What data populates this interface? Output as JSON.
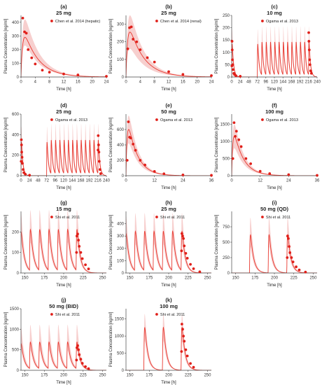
{
  "figure": {
    "y_label": "Plasma Concentration [ng/ml]",
    "x_label": "Time [h]"
  },
  "chart_data": [
    {
      "type": "line",
      "letter": "(a)",
      "title": "25 mg",
      "xlim": [
        0,
        24
      ],
      "ylim": [
        0,
        450
      ],
      "xticks": [
        0,
        4,
        8,
        12,
        16,
        20,
        24
      ],
      "yticks": [
        0,
        100,
        200,
        300,
        400
      ],
      "model": "decay",
      "model_peak": 290,
      "model_tmax": 1.0,
      "band_upper_peak": 420,
      "band_lower_peak": 230,
      "observed": {
        "name": "Chen et al. 2014 (hepatic)",
        "x": [
          0.5,
          1,
          1.5,
          2,
          3,
          4,
          6,
          8,
          12,
          16,
          24
        ],
        "y": [
          430,
          330,
          320,
          200,
          140,
          95,
          50,
          35,
          22,
          15,
          5
        ]
      }
    },
    {
      "type": "line",
      "letter": "(b)",
      "title": "25 mg",
      "xlim": [
        0,
        24
      ],
      "ylim": [
        0,
        350
      ],
      "xticks": [
        0,
        4,
        8,
        12,
        16,
        20,
        24
      ],
      "yticks": [
        0,
        100,
        200,
        300
      ],
      "model": "decay",
      "model_peak": 255,
      "model_tmax": 1.0,
      "band_upper_peak": 350,
      "band_lower_peak": 160,
      "observed": {
        "name": "Chen et al. 2014 (renal)",
        "x": [
          0.5,
          1,
          1.5,
          2,
          3,
          4,
          6,
          8,
          12,
          16,
          24
        ],
        "y": [
          160,
          280,
          285,
          215,
          200,
          155,
          110,
          85,
          30,
          15,
          8
        ]
      }
    },
    {
      "type": "line",
      "letter": "(c)",
      "title": "10 mg",
      "xlim": [
        0,
        240
      ],
      "ylim": [
        0,
        250
      ],
      "xticks": [
        0,
        24,
        48,
        72,
        96,
        120,
        144,
        168,
        192,
        216,
        240
      ],
      "yticks": [
        0,
        50,
        100,
        150,
        200,
        250
      ],
      "model": "multi",
      "dose_times": [
        0,
        72,
        84,
        96,
        108,
        120,
        132,
        144,
        156,
        168,
        180,
        192,
        204,
        216
      ],
      "model_peak": 135,
      "model_tmax": 1.0,
      "band_upper_peak": 195,
      "band_lower_peak": 95,
      "observed": {
        "name": "Ogama et al. 2013",
        "x": [
          0.5,
          1,
          1.5,
          2,
          3,
          4,
          6,
          8,
          12,
          24,
          216.5,
          217,
          218,
          219,
          220,
          222,
          224
        ],
        "y": [
          45,
          145,
          110,
          70,
          50,
          30,
          15,
          10,
          5,
          3,
          180,
          145,
          110,
          70,
          50,
          25,
          15
        ]
      }
    },
    {
      "type": "line",
      "letter": "(d)",
      "title": "25 mg",
      "xlim": [
        0,
        240
      ],
      "ylim": [
        0,
        600
      ],
      "xticks": [
        0,
        24,
        48,
        72,
        96,
        120,
        144,
        168,
        192,
        216,
        240
      ],
      "yticks": [
        0,
        200,
        400,
        600
      ],
      "model": "multi",
      "dose_times": [
        0,
        72,
        84,
        96,
        108,
        120,
        132,
        144,
        156,
        168,
        180,
        192,
        204,
        216
      ],
      "model_peak": 330,
      "model_tmax": 1.0,
      "band_upper_peak": 480,
      "band_lower_peak": 220,
      "observed": {
        "name": "Ogama et al. 2013",
        "x": [
          0.5,
          1,
          1.5,
          2,
          3,
          4,
          6,
          8,
          12,
          24,
          216.5,
          217,
          218,
          219,
          220,
          222,
          224
        ],
        "y": [
          140,
          350,
          300,
          230,
          180,
          120,
          60,
          30,
          15,
          5,
          250,
          390,
          300,
          230,
          140,
          60,
          20
        ]
      }
    },
    {
      "type": "line",
      "letter": "(e)",
      "title": "50 mg",
      "xlim": [
        0,
        36
      ],
      "ylim": [
        0,
        800
      ],
      "xticks": [
        0,
        12,
        24,
        36
      ],
      "yticks": [
        0,
        200,
        400,
        600
      ],
      "model": "decay",
      "model_peak": 600,
      "model_tmax": 1.0,
      "band_upper_peak": 780,
      "band_lower_peak": 420,
      "observed": {
        "name": "Ogama et al. 2013",
        "x": [
          0.5,
          1,
          1.5,
          2,
          3,
          4,
          6,
          8,
          12,
          16,
          24,
          36
        ],
        "y": [
          200,
          700,
          500,
          490,
          410,
          330,
          200,
          140,
          55,
          25,
          10,
          5
        ]
      }
    },
    {
      "type": "line",
      "letter": "(f)",
      "title": "100 mg",
      "xlim": [
        0,
        36
      ],
      "ylim": [
        0,
        1800
      ],
      "xticks": [
        0,
        12,
        24,
        36
      ],
      "yticks": [
        0,
        500,
        1000,
        1500
      ],
      "model": "decay",
      "model_peak": 1150,
      "model_tmax": 1.0,
      "band_upper_peak": 1500,
      "band_lower_peak": 800,
      "observed": {
        "name": "Ogama et al. 2013",
        "x": [
          0.5,
          1,
          1.5,
          2,
          3,
          4,
          6,
          8,
          12,
          16,
          24,
          36
        ],
        "y": [
          500,
          1550,
          1150,
          1300,
          1050,
          850,
          500,
          350,
          130,
          60,
          30,
          10
        ]
      }
    },
    {
      "type": "line",
      "letter": "(g)",
      "title": "15 mg",
      "xlim": [
        145,
        255
      ],
      "ylim": [
        0,
        300
      ],
      "xticks": [
        150,
        175,
        200,
        225,
        250
      ],
      "yticks": [
        0,
        100,
        200
      ],
      "model": "multi",
      "dose_times": [
        144,
        156,
        168,
        180,
        192,
        204,
        216
      ],
      "model_peak": 200,
      "model_tmax": 1.0,
      "band_upper_peak": 290,
      "band_lower_peak": 140,
      "observed": {
        "name": "Shi et al. 2011",
        "x": [
          216.5,
          217,
          218,
          219,
          220,
          222,
          224,
          228,
          232
        ],
        "y": [
          100,
          180,
          190,
          160,
          130,
          100,
          70,
          40,
          20
        ]
      }
    },
    {
      "type": "line",
      "letter": "(h)",
      "title": "25 mg",
      "xlim": [
        145,
        255
      ],
      "ylim": [
        0,
        500
      ],
      "xticks": [
        150,
        175,
        200,
        225,
        250
      ],
      "yticks": [
        0,
        100,
        200,
        300,
        400
      ],
      "model": "multi",
      "dose_times": [
        144,
        156,
        168,
        180,
        192,
        204,
        216
      ],
      "model_peak": 320,
      "model_tmax": 1.0,
      "band_upper_peak": 460,
      "band_lower_peak": 220,
      "observed": {
        "name": "Shi et al. 2011",
        "x": [
          216.5,
          217,
          218,
          219,
          220,
          222,
          224,
          228,
          232,
          240
        ],
        "y": [
          180,
          320,
          300,
          280,
          220,
          160,
          120,
          70,
          35,
          10
        ]
      }
    },
    {
      "type": "line",
      "letter": "(i)",
      "title": "50 mg (QD)",
      "xlim": [
        145,
        255
      ],
      "ylim": [
        0,
        1000
      ],
      "xticks": [
        150,
        175,
        200,
        225,
        250
      ],
      "yticks": [
        0,
        250,
        500,
        750
      ],
      "model": "multi",
      "dose_times": [
        168,
        192,
        216
      ],
      "model_peak": 620,
      "model_tmax": 1.0,
      "band_upper_peak": 900,
      "band_lower_peak": 420,
      "observed": {
        "name": "Shi et al. 2011",
        "x": [
          216.5,
          217,
          218,
          219,
          220,
          222,
          224,
          228,
          232,
          240
        ],
        "y": [
          250,
          600,
          560,
          430,
          330,
          250,
          180,
          100,
          50,
          15
        ]
      }
    },
    {
      "type": "line",
      "letter": "(j)",
      "title": "50 mg (BID)",
      "xlim": [
        145,
        255
      ],
      "ylim": [
        0,
        1500
      ],
      "xticks": [
        150,
        175,
        200,
        225,
        250
      ],
      "yticks": [
        0,
        500,
        1000,
        1500
      ],
      "model": "multi",
      "dose_times": [
        144,
        156,
        168,
        180,
        192,
        204,
        216
      ],
      "model_peak": 650,
      "model_tmax": 1.0,
      "band_upper_peak": 1050,
      "band_lower_peak": 450,
      "observed": {
        "name": "Shi et al. 2011",
        "x": [
          216.5,
          217,
          218,
          219,
          220,
          222,
          224,
          228,
          232
        ],
        "y": [
          250,
          550,
          600,
          500,
          380,
          270,
          170,
          90,
          40
        ]
      }
    },
    {
      "type": "line",
      "letter": "(k)",
      "title": "100 mg",
      "xlim": [
        145,
        255
      ],
      "ylim": [
        0,
        1800
      ],
      "xticks": [
        150,
        175,
        200,
        225,
        250
      ],
      "yticks": [
        0,
        500,
        1000,
        1500
      ],
      "model": "multi",
      "dose_times": [
        168,
        192,
        216
      ],
      "model_peak": 1250,
      "model_tmax": 1.0,
      "band_upper_peak": 1650,
      "band_lower_peak": 850,
      "observed": {
        "name": "Shi et al. 2011",
        "x": [
          216.5,
          217,
          218,
          219,
          220,
          222,
          224,
          228,
          232
        ],
        "y": [
          550,
          1350,
          1200,
          1000,
          850,
          600,
          420,
          200,
          90
        ]
      }
    }
  ],
  "colors": {
    "model_line": "#e8382f",
    "band": "#f6c7c5",
    "observed_point": "#e0201a",
    "axis": "#444444",
    "text": "#222222"
  }
}
